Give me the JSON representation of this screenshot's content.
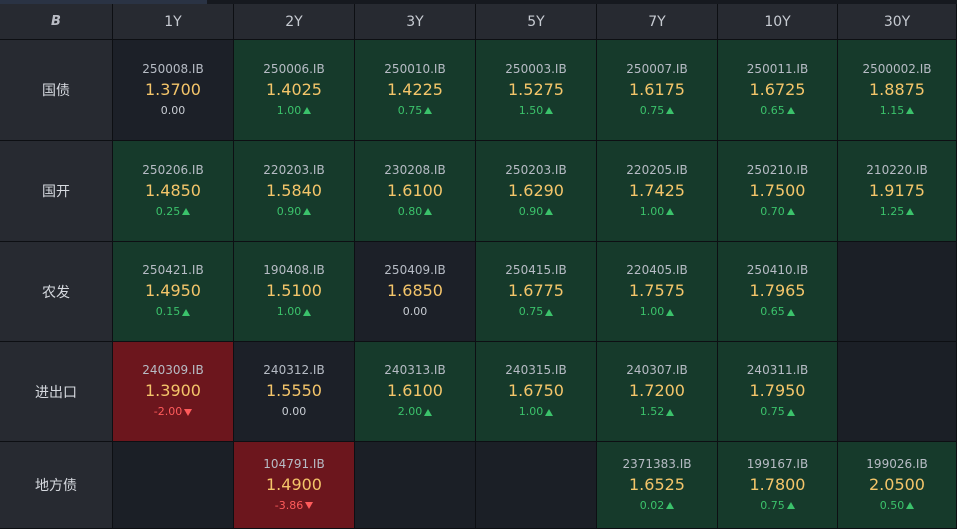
{
  "corner_icon": "B",
  "tenors": [
    "1Y",
    "2Y",
    "3Y",
    "5Y",
    "7Y",
    "10Y",
    "30Y"
  ],
  "rows": [
    {
      "label": "国债",
      "cells": [
        {
          "code": "250008.IB",
          "yield": "1.3700",
          "change": "0.00",
          "dir": "flat"
        },
        {
          "code": "250006.IB",
          "yield": "1.4025",
          "change": "1.00",
          "dir": "up"
        },
        {
          "code": "250010.IB",
          "yield": "1.4225",
          "change": "0.75",
          "dir": "up"
        },
        {
          "code": "250003.IB",
          "yield": "1.5275",
          "change": "1.50",
          "dir": "up"
        },
        {
          "code": "250007.IB",
          "yield": "1.6175",
          "change": "0.75",
          "dir": "up"
        },
        {
          "code": "250011.IB",
          "yield": "1.6725",
          "change": "0.65",
          "dir": "up"
        },
        {
          "code": "2500002.IB",
          "yield": "1.8875",
          "change": "1.15",
          "dir": "up"
        }
      ]
    },
    {
      "label": "国开",
      "cells": [
        {
          "code": "250206.IB",
          "yield": "1.4850",
          "change": "0.25",
          "dir": "up"
        },
        {
          "code": "220203.IB",
          "yield": "1.5840",
          "change": "0.90",
          "dir": "up"
        },
        {
          "code": "230208.IB",
          "yield": "1.6100",
          "change": "0.80",
          "dir": "up"
        },
        {
          "code": "250203.IB",
          "yield": "1.6290",
          "change": "0.90",
          "dir": "up"
        },
        {
          "code": "220205.IB",
          "yield": "1.7425",
          "change": "1.00",
          "dir": "up"
        },
        {
          "code": "250210.IB",
          "yield": "1.7500",
          "change": "0.70",
          "dir": "up"
        },
        {
          "code": "210220.IB",
          "yield": "1.9175",
          "change": "1.25",
          "dir": "up"
        }
      ]
    },
    {
      "label": "农发",
      "cells": [
        {
          "code": "250421.IB",
          "yield": "1.4950",
          "change": "0.15",
          "dir": "up"
        },
        {
          "code": "190408.IB",
          "yield": "1.5100",
          "change": "1.00",
          "dir": "up"
        },
        {
          "code": "250409.IB",
          "yield": "1.6850",
          "change": "0.00",
          "dir": "flat"
        },
        {
          "code": "250415.IB",
          "yield": "1.6775",
          "change": "0.75",
          "dir": "up"
        },
        {
          "code": "220405.IB",
          "yield": "1.7575",
          "change": "1.00",
          "dir": "up"
        },
        {
          "code": "250410.IB",
          "yield": "1.7965",
          "change": "0.65",
          "dir": "up"
        },
        null
      ]
    },
    {
      "label": "进出口",
      "cells": [
        {
          "code": "240309.IB",
          "yield": "1.3900",
          "change": "-2.00",
          "dir": "down"
        },
        {
          "code": "240312.IB",
          "yield": "1.5550",
          "change": "0.00",
          "dir": "flat"
        },
        {
          "code": "240313.IB",
          "yield": "1.6100",
          "change": "2.00",
          "dir": "up"
        },
        {
          "code": "240315.IB",
          "yield": "1.6750",
          "change": "1.00",
          "dir": "up"
        },
        {
          "code": "240307.IB",
          "yield": "1.7200",
          "change": "1.52",
          "dir": "up"
        },
        {
          "code": "240311.IB",
          "yield": "1.7950",
          "change": "0.75",
          "dir": "up"
        },
        null
      ]
    },
    {
      "label": "地方债",
      "cells": [
        null,
        {
          "code": "104791.IB",
          "yield": "1.4900",
          "change": "-3.86",
          "dir": "down"
        },
        null,
        null,
        {
          "code": "2371383.IB",
          "yield": "1.6525",
          "change": "0.02",
          "dir": "up"
        },
        {
          "code": "199167.IB",
          "yield": "1.7800",
          "change": "0.75",
          "dir": "up"
        },
        {
          "code": "199026.IB",
          "yield": "2.0500",
          "change": "0.50",
          "dir": "up"
        }
      ]
    }
  ],
  "colors": {
    "up_bg": "#163a2b",
    "down_bg": "#6c161d",
    "flat_bg": "#1c2028",
    "yield_text": "#f4c56a",
    "up_text": "#3bc26b",
    "down_text": "#ff5b5b"
  }
}
